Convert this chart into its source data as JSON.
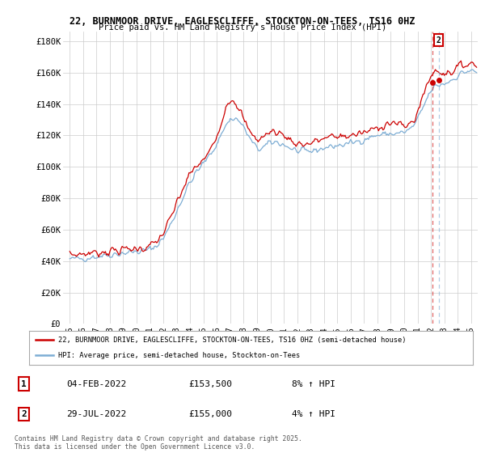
{
  "title_line1": "22, BURNMOOR DRIVE, EAGLESCLIFFE, STOCKTON-ON-TEES, TS16 0HZ",
  "title_line2": "Price paid vs. HM Land Registry's House Price Index (HPI)",
  "ylabel_ticks": [
    "£0",
    "£20K",
    "£40K",
    "£60K",
    "£80K",
    "£100K",
    "£120K",
    "£140K",
    "£160K",
    "£180K"
  ],
  "ytick_vals": [
    0,
    20000,
    40000,
    60000,
    80000,
    100000,
    120000,
    140000,
    160000,
    180000
  ],
  "ylim": [
    0,
    186000
  ],
  "xlim_start": 1994.5,
  "xlim_end": 2025.5,
  "legend_line1": "22, BURNMOOR DRIVE, EAGLESCLIFFE, STOCKTON-ON-TEES, TS16 0HZ (semi-detached house)",
  "legend_line2": "HPI: Average price, semi-detached house, Stockton-on-Tees",
  "sale1_label": "1",
  "sale1_date": "04-FEB-2022",
  "sale1_price": "£153,500",
  "sale1_hpi": "8% ↑ HPI",
  "sale2_label": "2",
  "sale2_date": "29-JUL-2022",
  "sale2_price": "£155,000",
  "sale2_hpi": "4% ↑ HPI",
  "sale1_year": 2022.09,
  "sale2_year": 2022.57,
  "sale1_price_val": 153500,
  "sale2_price_val": 155000,
  "color_red": "#cc0000",
  "color_blue": "#7dadd4",
  "footer": "Contains HM Land Registry data © Crown copyright and database right 2025.\nThis data is licensed under the Open Government Licence v3.0.",
  "bg_color": "#ffffff",
  "plot_bg": "#ffffff",
  "grid_color": "#cccccc",
  "annotation_box_color": "#cc0000",
  "xtick_years": [
    1995,
    1996,
    1997,
    1998,
    1999,
    2000,
    2001,
    2002,
    2003,
    2004,
    2005,
    2006,
    2007,
    2008,
    2009,
    2010,
    2011,
    2012,
    2013,
    2014,
    2015,
    2016,
    2017,
    2018,
    2019,
    2020,
    2021,
    2022,
    2023,
    2024,
    2025
  ],
  "xtick_labels": [
    "95",
    "96",
    "97",
    "98",
    "99",
    "00",
    "01",
    "02",
    "03",
    "04",
    "05",
    "06",
    "07",
    "08",
    "09",
    "10",
    "11",
    "12",
    "13",
    "14",
    "15",
    "16",
    "17",
    "18",
    "19",
    "20",
    "21",
    "22",
    "23",
    "24",
    "25"
  ]
}
